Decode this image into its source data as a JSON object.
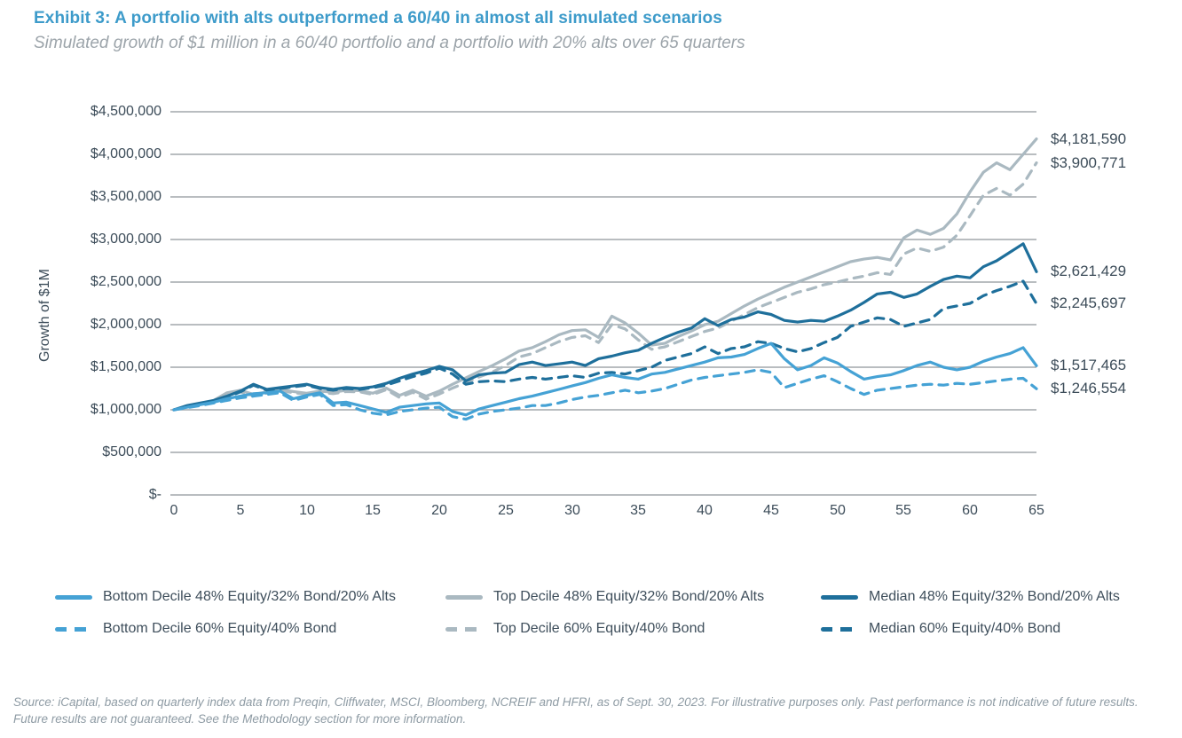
{
  "header": {
    "title": "Exhibit 3: A portfolio with alts outperformed a 60/40 in almost all simulated scenarios",
    "subtitle": "Simulated growth of $1 million in a 60/40 portfolio and a portfolio with 20% alts over 65 quarters"
  },
  "chart_data": {
    "type": "line",
    "ylabel": "Growth of $1M",
    "xlabel": "",
    "unit": "USD millions",
    "xlim_quarters": [
      0,
      65
    ],
    "ylim_millions": [
      0,
      4.5
    ],
    "grid": "horizontal",
    "legend_position": "bottom",
    "x_tick_labels": [
      "0",
      "5",
      "10",
      "15",
      "20",
      "25",
      "30",
      "35",
      "40",
      "45",
      "50",
      "55",
      "60",
      "65"
    ],
    "x_tick_values": [
      0,
      5,
      10,
      15,
      20,
      25,
      30,
      35,
      40,
      45,
      50,
      55,
      60,
      65
    ],
    "y_tick_labels": [
      "$4,500,000",
      "$4,000,000",
      "$3,500,000",
      "$3,000,000",
      "$2,500,000",
      "$2,000,000",
      "$1,500,000",
      "$1,000,000",
      "$500,000",
      "$-"
    ],
    "y_tick_values_millions": [
      4.5,
      4.0,
      3.5,
      3.0,
      2.5,
      2.0,
      1.5,
      1.0,
      0.5,
      0
    ],
    "series": [
      {
        "name": "Top Decile 48% Equity/32% Bond/20% Alts",
        "color": "#AAB9C1",
        "dash": "solid",
        "end_label": "$4,181,590",
        "end_value": 4181590,
        "values_millions": [
          1.0,
          1.04,
          1.07,
          1.11,
          1.2,
          1.23,
          1.18,
          1.21,
          1.24,
          1.215,
          1.195,
          1.22,
          1.205,
          1.23,
          1.225,
          1.195,
          1.255,
          1.17,
          1.23,
          1.16,
          1.22,
          1.3,
          1.375,
          1.45,
          1.52,
          1.6,
          1.69,
          1.73,
          1.8,
          1.88,
          1.93,
          1.94,
          1.85,
          2.1,
          2.02,
          1.9,
          1.76,
          1.78,
          1.86,
          1.925,
          2.0,
          2.04,
          2.13,
          2.22,
          2.3,
          2.37,
          2.44,
          2.5,
          2.56,
          2.62,
          2.68,
          2.74,
          2.77,
          2.79,
          2.76,
          3.02,
          3.11,
          3.06,
          3.13,
          3.3,
          3.56,
          3.79,
          3.9,
          3.82,
          4.0,
          4.18159
        ]
      },
      {
        "name": "Top Decile 60% Equity/40% Bond",
        "color": "#AAB9C1",
        "dash": "dashed",
        "end_label": "$3,900,771",
        "end_value": 3900771,
        "values_millions": [
          1.0,
          1.035,
          1.06,
          1.1,
          1.18,
          1.21,
          1.165,
          1.195,
          1.225,
          1.2,
          1.185,
          1.205,
          1.19,
          1.215,
          1.21,
          1.18,
          1.235,
          1.145,
          1.205,
          1.125,
          1.185,
          1.255,
          1.32,
          1.385,
          1.445,
          1.52,
          1.62,
          1.66,
          1.73,
          1.8,
          1.85,
          1.87,
          1.79,
          2.0,
          1.95,
          1.82,
          1.71,
          1.74,
          1.8,
          1.86,
          1.92,
          1.96,
          2.04,
          2.12,
          2.2,
          2.26,
          2.32,
          2.38,
          2.42,
          2.47,
          2.5,
          2.54,
          2.57,
          2.61,
          2.59,
          2.83,
          2.9,
          2.86,
          2.91,
          3.05,
          3.28,
          3.52,
          3.6,
          3.52,
          3.65,
          3.900771
        ]
      },
      {
        "name": "Bottom Decile 60% Equity/40% Bond",
        "color": "#45A2D5",
        "dash": "dashed",
        "end_label": "$1,246,554",
        "end_value": 1246554,
        "values_millions": [
          1.0,
          1.025,
          1.05,
          1.08,
          1.11,
          1.14,
          1.16,
          1.18,
          1.2,
          1.11,
          1.15,
          1.18,
          1.05,
          1.06,
          1.0,
          0.96,
          0.94,
          0.98,
          1.0,
          1.02,
          1.03,
          0.92,
          0.89,
          0.95,
          0.98,
          1.0,
          1.02,
          1.05,
          1.05,
          1.08,
          1.12,
          1.15,
          1.17,
          1.2,
          1.23,
          1.2,
          1.22,
          1.25,
          1.3,
          1.35,
          1.38,
          1.4,
          1.42,
          1.44,
          1.47,
          1.44,
          1.26,
          1.31,
          1.36,
          1.4,
          1.33,
          1.25,
          1.18,
          1.23,
          1.25,
          1.27,
          1.29,
          1.3,
          1.29,
          1.31,
          1.3,
          1.32,
          1.34,
          1.36,
          1.37,
          1.246554
        ]
      },
      {
        "name": "Median 60% Equity/40% Bond",
        "color": "#1E6F9B",
        "dash": "dashed",
        "end_label": "$2,245,697",
        "end_value": 2245697,
        "values_millions": [
          1.0,
          1.045,
          1.075,
          1.105,
          1.15,
          1.21,
          1.29,
          1.23,
          1.25,
          1.27,
          1.29,
          1.25,
          1.23,
          1.25,
          1.24,
          1.26,
          1.29,
          1.34,
          1.39,
          1.43,
          1.49,
          1.42,
          1.3,
          1.33,
          1.34,
          1.33,
          1.36,
          1.38,
          1.36,
          1.38,
          1.4,
          1.38,
          1.43,
          1.44,
          1.42,
          1.46,
          1.5,
          1.58,
          1.62,
          1.66,
          1.74,
          1.66,
          1.72,
          1.74,
          1.8,
          1.78,
          1.72,
          1.68,
          1.72,
          1.79,
          1.85,
          1.98,
          2.03,
          2.08,
          2.06,
          1.98,
          2.02,
          2.06,
          2.19,
          2.22,
          2.25,
          2.34,
          2.4,
          2.45,
          2.51,
          2.245697
        ]
      },
      {
        "name": "Median 48% Equity/32% Bond/20% Alts",
        "color": "#1E6F9B",
        "dash": "solid",
        "end_label": "$2,621,429",
        "end_value": 2621429,
        "values_millions": [
          1.0,
          1.05,
          1.08,
          1.11,
          1.16,
          1.22,
          1.3,
          1.24,
          1.26,
          1.28,
          1.3,
          1.26,
          1.24,
          1.262,
          1.25,
          1.27,
          1.31,
          1.37,
          1.42,
          1.46,
          1.51,
          1.47,
          1.34,
          1.41,
          1.43,
          1.44,
          1.53,
          1.56,
          1.52,
          1.54,
          1.56,
          1.52,
          1.6,
          1.63,
          1.67,
          1.7,
          1.78,
          1.85,
          1.91,
          1.96,
          2.07,
          1.99,
          2.06,
          2.09,
          2.15,
          2.12,
          2.05,
          2.03,
          2.05,
          2.04,
          2.1,
          2.17,
          2.26,
          2.36,
          2.38,
          2.32,
          2.36,
          2.45,
          2.53,
          2.57,
          2.55,
          2.68,
          2.75,
          2.85,
          2.95,
          2.621429
        ]
      },
      {
        "name": "Bottom Decile 48% Equity/32% Bond/20% Alts",
        "color": "#45A2D5",
        "dash": "solid",
        "end_label": "$1,517,465",
        "end_value": 1517465,
        "values_millions": [
          1.0,
          1.03,
          1.06,
          1.09,
          1.13,
          1.16,
          1.19,
          1.2,
          1.22,
          1.13,
          1.17,
          1.2,
          1.08,
          1.09,
          1.05,
          1.01,
          0.97,
          1.03,
          1.05,
          1.07,
          1.08,
          0.98,
          0.94,
          1.01,
          1.05,
          1.09,
          1.13,
          1.16,
          1.2,
          1.24,
          1.28,
          1.32,
          1.37,
          1.41,
          1.38,
          1.36,
          1.42,
          1.44,
          1.48,
          1.52,
          1.56,
          1.61,
          1.62,
          1.65,
          1.72,
          1.78,
          1.6,
          1.47,
          1.52,
          1.61,
          1.55,
          1.45,
          1.36,
          1.39,
          1.41,
          1.46,
          1.52,
          1.56,
          1.5,
          1.47,
          1.5,
          1.57,
          1.62,
          1.66,
          1.73,
          1.517465
        ]
      }
    ]
  },
  "legend": {
    "items": [
      {
        "label": "Bottom Decile 48% Equity/32% Bond/20% Alts",
        "color": "#45A2D5",
        "dash": "solid"
      },
      {
        "label": "Bottom Decile 60% Equity/40% Bond",
        "color": "#45A2D5",
        "dash": "dashed"
      },
      {
        "label": "Top Decile 48% Equity/32% Bond/20% Alts",
        "color": "#AAB9C1",
        "dash": "solid"
      },
      {
        "label": "Top Decile 60% Equity/40% Bond",
        "color": "#AAB9C1",
        "dash": "dashed"
      },
      {
        "label": "Median 48% Equity/32% Bond/20% Alts",
        "color": "#1E6F9B",
        "dash": "solid"
      },
      {
        "label": "Median 60% Equity/40% Bond",
        "color": "#1E6F9B",
        "dash": "dashed"
      }
    ]
  },
  "footer": {
    "source": "Source: iCapital, based on quarterly index data from Preqin, Cliffwater, MSCI, Bloomberg, NCREIF and HFRI, as of Sept. 30, 2023. For illustrative purposes only. Past performance is not indicative of future results. Future results are not guaranteed. See the Methodology section for more information."
  },
  "colors": {
    "title_accent": "#3D9BCA",
    "gridline": "#A2A7AB",
    "axis_text": "#3C4C59",
    "subtitle_text": "#9CA4AA",
    "source_text": "#8E9BA4"
  }
}
